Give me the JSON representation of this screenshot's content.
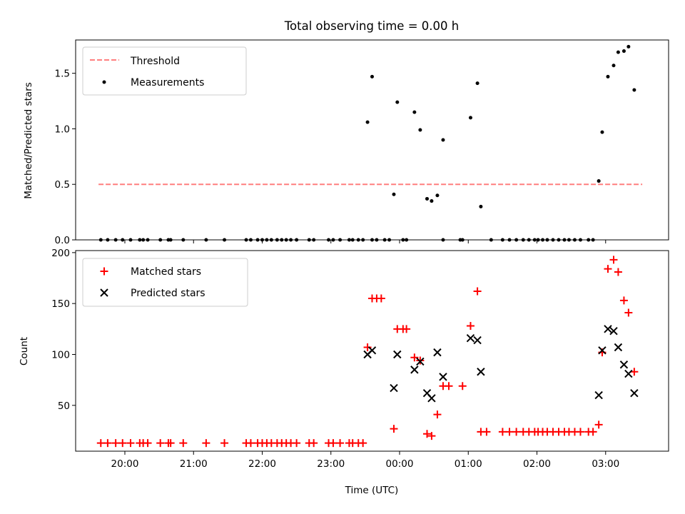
{
  "chart_data": [
    {
      "type": "scatter",
      "title": "Total observing time = 0.00 h",
      "ylabel": "Matched/Predicted stars",
      "xlabel": "",
      "xlim": [
        "19:17",
        "03:55"
      ],
      "ylim": [
        0,
        1.8
      ],
      "yticks": [
        0.0,
        0.5,
        1.0,
        1.5
      ],
      "ytick_labels": [
        "0.0",
        "0.5",
        "1.0",
        "1.5"
      ],
      "grid": false,
      "legend": {
        "placement": "top-left",
        "entries": [
          {
            "label": "Threshold",
            "series": "threshold"
          },
          {
            "label": "Measurements",
            "series": "measurements"
          }
        ]
      },
      "series": [
        {
          "key": "threshold",
          "name": "Threshold",
          "style": "dashed-line",
          "color": "#ff7f7f",
          "x": [
            "19:37",
            "03:32"
          ],
          "y": [
            0.5,
            0.5
          ]
        },
        {
          "key": "measurements",
          "name": "Measurements",
          "style": "dot",
          "color": "#000000",
          "points": [
            [
              "19:39",
              0
            ],
            [
              "19:45",
              0
            ],
            [
              "19:52",
              0
            ],
            [
              "19:58",
              0
            ],
            [
              "20:05",
              0
            ],
            [
              "20:13",
              0
            ],
            [
              "20:16",
              0
            ],
            [
              "20:20",
              0
            ],
            [
              "20:31",
              0
            ],
            [
              "20:38",
              0
            ],
            [
              "20:40",
              0
            ],
            [
              "20:51",
              0
            ],
            [
              "21:11",
              0
            ],
            [
              "21:27",
              0
            ],
            [
              "21:46",
              0
            ],
            [
              "21:50",
              0
            ],
            [
              "21:56",
              0
            ],
            [
              "22:00",
              0
            ],
            [
              "22:04",
              0
            ],
            [
              "22:08",
              0
            ],
            [
              "22:13",
              0
            ],
            [
              "22:17",
              0
            ],
            [
              "22:21",
              0
            ],
            [
              "22:25",
              0
            ],
            [
              "22:30",
              0
            ],
            [
              "22:41",
              0
            ],
            [
              "22:45",
              0
            ],
            [
              "22:58",
              0
            ],
            [
              "23:02",
              0
            ],
            [
              "23:08",
              0
            ],
            [
              "23:16",
              0
            ],
            [
              "23:19",
              0
            ],
            [
              "23:24",
              0
            ],
            [
              "23:28",
              0
            ],
            [
              "23:36",
              0
            ],
            [
              "23:40",
              0
            ],
            [
              "23:47",
              0
            ],
            [
              "23:51",
              0
            ],
            [
              "00:03",
              0
            ],
            [
              "00:06",
              0
            ],
            [
              "00:38",
              0
            ],
            [
              "00:53",
              0
            ],
            [
              "00:55",
              0
            ],
            [
              "01:20",
              0
            ],
            [
              "01:30",
              0
            ],
            [
              "01:36",
              0
            ],
            [
              "01:42",
              0
            ],
            [
              "01:48",
              0
            ],
            [
              "01:53",
              0
            ],
            [
              "01:58",
              0
            ],
            [
              "02:01",
              0
            ],
            [
              "02:05",
              0
            ],
            [
              "02:09",
              0
            ],
            [
              "02:14",
              0
            ],
            [
              "02:19",
              0
            ],
            [
              "02:24",
              0
            ],
            [
              "02:28",
              0
            ],
            [
              "02:33",
              0
            ],
            [
              "02:38",
              0
            ],
            [
              "02:45",
              0
            ],
            [
              "02:49",
              0
            ],
            [
              "23:32",
              1.06
            ],
            [
              "23:36",
              1.47
            ],
            [
              "23:55",
              0.41
            ],
            [
              "23:58",
              1.24
            ],
            [
              "00:13",
              1.15
            ],
            [
              "00:18",
              0.99
            ],
            [
              "00:24",
              0.37
            ],
            [
              "00:28",
              0.35
            ],
            [
              "00:33",
              0.4
            ],
            [
              "00:38",
              0.9
            ],
            [
              "01:02",
              1.1
            ],
            [
              "01:08",
              1.41
            ],
            [
              "01:11",
              0.3
            ],
            [
              "02:54",
              0.53
            ],
            [
              "02:57",
              0.97
            ],
            [
              "03:02",
              1.47
            ],
            [
              "03:07",
              1.57
            ],
            [
              "03:11",
              1.69
            ],
            [
              "03:16",
              1.7
            ],
            [
              "03:20",
              1.74
            ],
            [
              "03:25",
              1.35
            ]
          ]
        }
      ]
    },
    {
      "type": "scatter",
      "title": "",
      "xlabel": "Time (UTC)",
      "ylabel": "Count",
      "xlim": [
        "19:17",
        "03:55"
      ],
      "ylim": [
        5,
        202
      ],
      "yticks": [
        50,
        100,
        150,
        200
      ],
      "ytick_labels": [
        "50",
        "100",
        "150",
        "200"
      ],
      "xticks": [
        "20:00",
        "21:00",
        "22:00",
        "23:00",
        "00:00",
        "01:00",
        "02:00",
        "03:00"
      ],
      "xtick_labels": [
        "20:00",
        "21:00",
        "22:00",
        "23:00",
        "00:00",
        "01:00",
        "02:00",
        "03:00"
      ],
      "grid": false,
      "legend": {
        "placement": "top-left",
        "entries": [
          {
            "label": "Matched stars",
            "series": "matched"
          },
          {
            "label": "Predicted stars",
            "series": "predicted"
          }
        ]
      },
      "series": [
        {
          "key": "matched",
          "name": "Matched stars",
          "marker": "plus",
          "color": "#ff0000",
          "points": [
            [
              "19:39",
              13
            ],
            [
              "19:45",
              13
            ],
            [
              "19:52",
              13
            ],
            [
              "19:58",
              13
            ],
            [
              "20:05",
              13
            ],
            [
              "20:13",
              13
            ],
            [
              "20:16",
              13
            ],
            [
              "20:20",
              13
            ],
            [
              "20:31",
              13
            ],
            [
              "20:38",
              13
            ],
            [
              "20:40",
              13
            ],
            [
              "20:51",
              13
            ],
            [
              "21:11",
              13
            ],
            [
              "21:27",
              13
            ],
            [
              "21:46",
              13
            ],
            [
              "21:50",
              13
            ],
            [
              "21:56",
              13
            ],
            [
              "22:00",
              13
            ],
            [
              "22:04",
              13
            ],
            [
              "22:08",
              13
            ],
            [
              "22:13",
              13
            ],
            [
              "22:17",
              13
            ],
            [
              "22:21",
              13
            ],
            [
              "22:25",
              13
            ],
            [
              "22:30",
              13
            ],
            [
              "22:41",
              13
            ],
            [
              "22:45",
              13
            ],
            [
              "22:58",
              13
            ],
            [
              "23:02",
              13
            ],
            [
              "23:08",
              13
            ],
            [
              "23:16",
              13
            ],
            [
              "23:19",
              13
            ],
            [
              "23:24",
              13
            ],
            [
              "23:28",
              13
            ],
            [
              "23:32",
              107
            ],
            [
              "23:36",
              155
            ],
            [
              "23:40",
              155
            ],
            [
              "23:44",
              155
            ],
            [
              "23:55",
              27
            ],
            [
              "23:58",
              125
            ],
            [
              "00:03",
              125
            ],
            [
              "00:06",
              125
            ],
            [
              "00:13",
              97
            ],
            [
              "00:18",
              94
            ],
            [
              "00:24",
              22
            ],
            [
              "00:28",
              20
            ],
            [
              "00:33",
              41
            ],
            [
              "00:38",
              69
            ],
            [
              "00:43",
              69
            ],
            [
              "00:55",
              69
            ],
            [
              "01:02",
              128
            ],
            [
              "01:08",
              162
            ],
            [
              "01:11",
              24
            ],
            [
              "01:16",
              24
            ],
            [
              "01:30",
              24
            ],
            [
              "01:36",
              24
            ],
            [
              "01:42",
              24
            ],
            [
              "01:48",
              24
            ],
            [
              "01:53",
              24
            ],
            [
              "01:58",
              24
            ],
            [
              "02:01",
              24
            ],
            [
              "02:05",
              24
            ],
            [
              "02:09",
              24
            ],
            [
              "02:14",
              24
            ],
            [
              "02:19",
              24
            ],
            [
              "02:24",
              24
            ],
            [
              "02:28",
              24
            ],
            [
              "02:33",
              24
            ],
            [
              "02:38",
              24
            ],
            [
              "02:45",
              24
            ],
            [
              "02:49",
              24
            ],
            [
              "02:54",
              31
            ],
            [
              "02:57",
              102
            ],
            [
              "03:02",
              184
            ],
            [
              "03:07",
              193
            ],
            [
              "03:11",
              181
            ],
            [
              "03:16",
              153
            ],
            [
              "03:20",
              141
            ],
            [
              "03:25",
              83
            ]
          ]
        },
        {
          "key": "predicted",
          "name": "Predicted stars",
          "marker": "x",
          "color": "#000000",
          "points": [
            [
              "23:32",
              100
            ],
            [
              "23:36",
              104
            ],
            [
              "23:55",
              67
            ],
            [
              "23:58",
              100
            ],
            [
              "00:13",
              85
            ],
            [
              "00:18",
              93
            ],
            [
              "00:24",
              62
            ],
            [
              "00:28",
              57
            ],
            [
              "00:33",
              102
            ],
            [
              "00:38",
              78
            ],
            [
              "01:02",
              116
            ],
            [
              "01:08",
              114
            ],
            [
              "01:11",
              83
            ],
            [
              "02:54",
              60
            ],
            [
              "02:57",
              104
            ],
            [
              "03:02",
              125
            ],
            [
              "03:07",
              123
            ],
            [
              "03:11",
              107
            ],
            [
              "03:16",
              90
            ],
            [
              "03:20",
              81
            ],
            [
              "03:25",
              62
            ]
          ]
        }
      ]
    }
  ]
}
